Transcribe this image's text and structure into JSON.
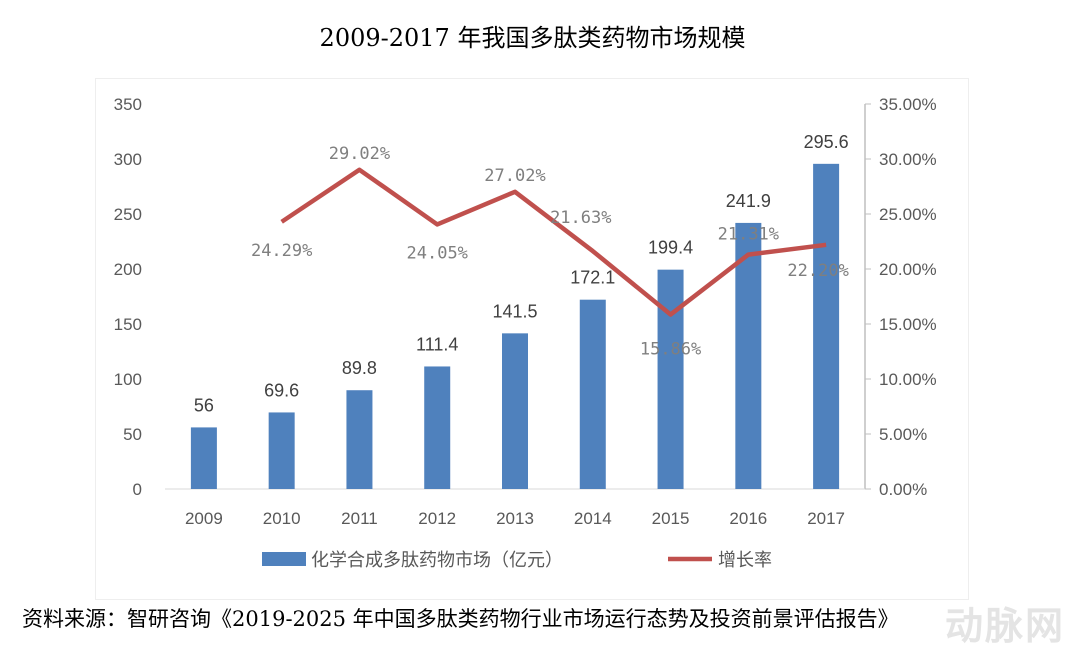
{
  "chart_data": {
    "type": "bar+line",
    "title": "2009-2017 年我国多肽类药物市场规模",
    "categories": [
      "2009",
      "2010",
      "2011",
      "2012",
      "2013",
      "2014",
      "2015",
      "2016",
      "2017"
    ],
    "series": [
      {
        "name": "化学合成多肽药物市场（亿元）",
        "type": "bar",
        "axis": "left",
        "color": "#4f81bd",
        "values": [
          56,
          69.6,
          89.8,
          111.4,
          141.5,
          172.1,
          199.4,
          241.9,
          295.6
        ],
        "labels": [
          "56",
          "69.6",
          "89.8",
          "111.4",
          "141.5",
          "172.1",
          "199.4",
          "241.9",
          "295.6"
        ]
      },
      {
        "name": "增长率",
        "type": "line",
        "axis": "right",
        "color": "#c0504d",
        "values": [
          null,
          24.29,
          29.02,
          24.05,
          27.02,
          21.63,
          15.86,
          21.31,
          22.2
        ],
        "labels": [
          "",
          "24.29%",
          "29.02%",
          "24.05%",
          "27.02%",
          "21.63%",
          "15.86%",
          "21.31%",
          "22.20%"
        ]
      }
    ],
    "left_axis": {
      "ylim": [
        0,
        350
      ],
      "ticks": [
        "0",
        "50",
        "100",
        "150",
        "200",
        "250",
        "300",
        "350"
      ]
    },
    "right_axis": {
      "ylim": [
        0,
        35
      ],
      "ticks": [
        "0.00%",
        "5.00%",
        "10.00%",
        "15.00%",
        "20.00%",
        "25.00%",
        "30.00%",
        "35.00%"
      ]
    },
    "grid": false,
    "legend": "bottom"
  },
  "source": "资料来源：智研咨询《2019-2025 年中国多肽类药物行业市场运行态势及投资前景评估报告》",
  "watermark": "动脉网"
}
